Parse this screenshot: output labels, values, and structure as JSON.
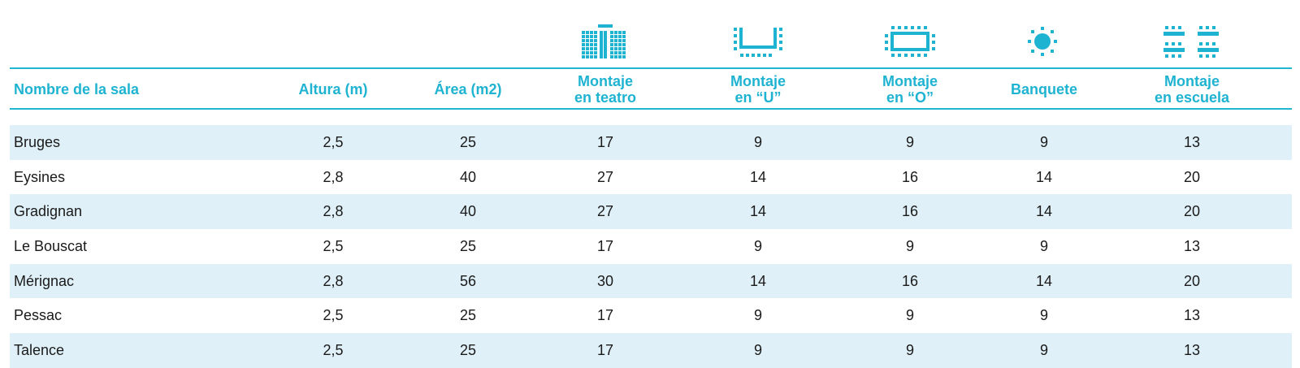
{
  "columns": [
    {
      "id": "name",
      "label_lines": [
        "Nombre de la sala"
      ],
      "icon": null
    },
    {
      "id": "altura",
      "label_lines": [
        "Altura (m)"
      ],
      "icon": null
    },
    {
      "id": "area",
      "label_lines": [
        "Área (m2)"
      ],
      "icon": null
    },
    {
      "id": "teatro",
      "label_lines": [
        "Montaje",
        "en teatro"
      ],
      "icon": "theatre-layout-icon"
    },
    {
      "id": "u",
      "label_lines": [
        "Montaje",
        "en “U”"
      ],
      "icon": "u-shape-layout-icon"
    },
    {
      "id": "o",
      "label_lines": [
        "Montaje",
        "en “O”"
      ],
      "icon": "o-shape-layout-icon"
    },
    {
      "id": "banquete",
      "label_lines": [
        "Banquete"
      ],
      "icon": "banquet-layout-icon"
    },
    {
      "id": "escuela",
      "label_lines": [
        "Montaje",
        "en escuela"
      ],
      "icon": "classroom-layout-icon"
    }
  ],
  "rows": [
    {
      "name": "Bruges",
      "values": [
        "2,5",
        "25",
        "17",
        "9",
        "9",
        "9",
        "13"
      ]
    },
    {
      "name": "Eysines",
      "values": [
        "2,8",
        "40",
        "27",
        "14",
        "16",
        "14",
        "20"
      ]
    },
    {
      "name": "Gradignan",
      "values": [
        "2,8",
        "40",
        "27",
        "14",
        "16",
        "14",
        "20"
      ]
    },
    {
      "name": "Le Bouscat",
      "values": [
        "2,5",
        "25",
        "17",
        "9",
        "9",
        "9",
        "13"
      ]
    },
    {
      "name": "Mérignac",
      "values": [
        "2,8",
        "56",
        "30",
        "14",
        "16",
        "14",
        "20"
      ]
    },
    {
      "name": "Pessac",
      "values": [
        "2,5",
        "25",
        "17",
        "9",
        "9",
        "9",
        "13"
      ]
    },
    {
      "name": "Talence",
      "values": [
        "2,5",
        "25",
        "17",
        "9",
        "9",
        "9",
        "13"
      ]
    }
  ],
  "colors": {
    "accent": "#1fb3d2",
    "row_shade": "#dff0f8",
    "text": "#1a1a1a"
  }
}
